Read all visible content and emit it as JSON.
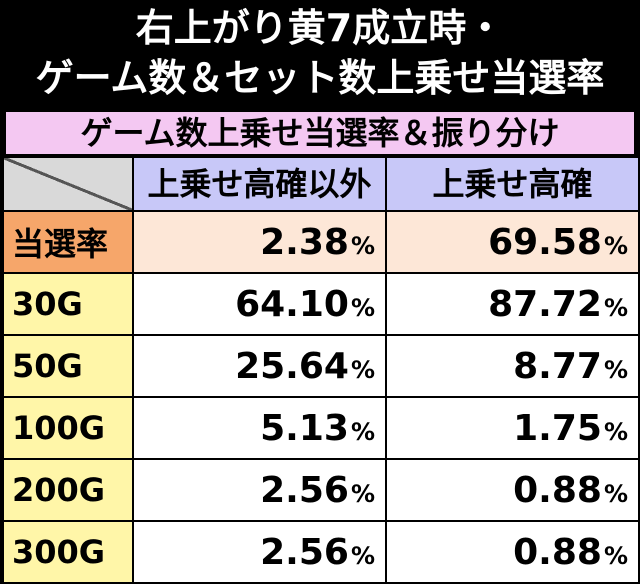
{
  "title": {
    "line1": "右上がり黄7成立時・",
    "line2": "ゲーム数＆セット数上乗せ当選率"
  },
  "subtitle": "ゲーム数上乗せ当選率＆振り分け",
  "table": {
    "columns": [
      "上乗せ高確以外",
      "上乗せ高確"
    ],
    "unit": "%",
    "rows": [
      {
        "label": "当選率",
        "values": [
          "2.38",
          "69.58"
        ]
      },
      {
        "label": "30G",
        "values": [
          "64.10",
          "87.72"
        ]
      },
      {
        "label": "50G",
        "values": [
          "25.64",
          "8.77"
        ]
      },
      {
        "label": "100G",
        "values": [
          "5.13",
          "1.75"
        ]
      },
      {
        "label": "200G",
        "values": [
          "2.56",
          "0.88"
        ]
      },
      {
        "label": "300G",
        "values": [
          "2.56",
          "0.88"
        ]
      }
    ]
  },
  "colors": {
    "subtitle_bg": "#f4c8f2",
    "column_header_bg": "#c8c8f8",
    "row_header_bg": "#fff6a8",
    "highlight_row_header_bg": "#f6a66a",
    "highlight_row_bg": "#fde7d7"
  }
}
